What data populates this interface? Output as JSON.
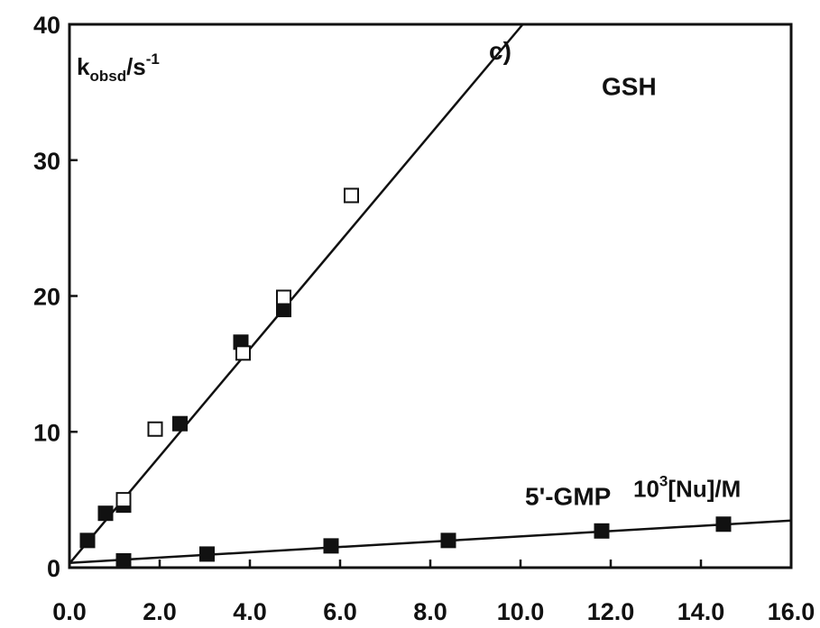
{
  "chart_data": {
    "type": "scatter",
    "panel_label": "c)",
    "title": "",
    "xlabel": "10³[Nu]/M",
    "xlabel_base": "10",
    "xlabel_sup": "3",
    "xlabel_rest": "[Nu]/M",
    "ylabel": "kobsd/s-1",
    "ylabel_main": "k",
    "ylabel_sub": "obsd",
    "ylabel_unit": "/s",
    "ylabel_sup": "-1",
    "xlim": [
      0,
      16
    ],
    "ylim": [
      0,
      40
    ],
    "x_ticks": [
      "0.0",
      "2.0",
      "4.0",
      "6.0",
      "8.0",
      "10.0",
      "12.0",
      "14.0",
      "16.0"
    ],
    "y_ticks": [
      "0",
      "10",
      "20",
      "30",
      "40"
    ],
    "grid": false,
    "series": [
      {
        "name": "GSH",
        "marker": "square-filled",
        "x": [
          0.4,
          0.8,
          1.2,
          2.45,
          3.8,
          4.75
        ],
        "y": [
          2.0,
          4.0,
          4.6,
          10.6,
          16.6,
          19.0
        ]
      },
      {
        "name": "GSH",
        "marker": "square-open",
        "x": [
          1.2,
          1.9,
          3.85,
          4.75,
          6.25
        ],
        "y": [
          5.0,
          10.2,
          15.8,
          19.9,
          27.4
        ]
      },
      {
        "name": "5'-GMP",
        "marker": "square-filled",
        "x": [
          1.2,
          3.05,
          5.8,
          8.4,
          11.8,
          14.5
        ],
        "y": [
          0.5,
          1.0,
          1.6,
          2.0,
          2.7,
          3.2
        ]
      }
    ],
    "fit_lines": [
      {
        "label": "GSH",
        "slope": 3.95,
        "intercept": 0.3
      },
      {
        "label": "5'-GMP",
        "slope": 0.195,
        "intercept": 0.35
      }
    ],
    "line_labels": [
      "GSH",
      "5'-GMP"
    ],
    "colors": {
      "axis": "#111111",
      "marker": "#111111",
      "line": "#111111",
      "background": "#ffffff"
    }
  }
}
